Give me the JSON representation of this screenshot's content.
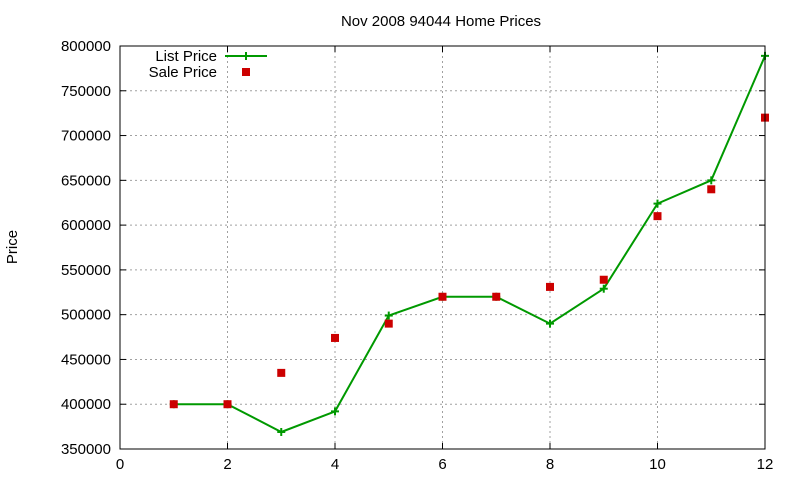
{
  "chart_data": {
    "type": "line",
    "title": "Nov 2008 94044 Home Prices",
    "xlabel": "",
    "ylabel": "Price",
    "xlim": [
      0,
      12
    ],
    "ylim": [
      350000,
      800000
    ],
    "xticks": [
      0,
      2,
      4,
      6,
      8,
      10,
      12
    ],
    "yticks": [
      350000,
      400000,
      450000,
      500000,
      550000,
      600000,
      650000,
      700000,
      750000,
      800000
    ],
    "grid": true,
    "legend_position": "top-left",
    "series": [
      {
        "name": "List Price",
        "style": "line+cross",
        "color": "#009900",
        "x": [
          1,
          2,
          3,
          4,
          5,
          6,
          7,
          8,
          9,
          10,
          11,
          12
        ],
        "y": [
          400000,
          400000,
          369000,
          392000,
          499000,
          520000,
          520000,
          490000,
          529000,
          624000,
          650000,
          789000
        ]
      },
      {
        "name": "Sale Price",
        "style": "square-markers",
        "color": "#cc0000",
        "x": [
          1,
          2,
          3,
          4,
          5,
          6,
          7,
          8,
          9,
          10,
          11,
          12
        ],
        "y": [
          400000,
          400000,
          435000,
          474000,
          490000,
          520000,
          520000,
          531000,
          539000,
          610000,
          640000,
          720000
        ]
      }
    ]
  }
}
